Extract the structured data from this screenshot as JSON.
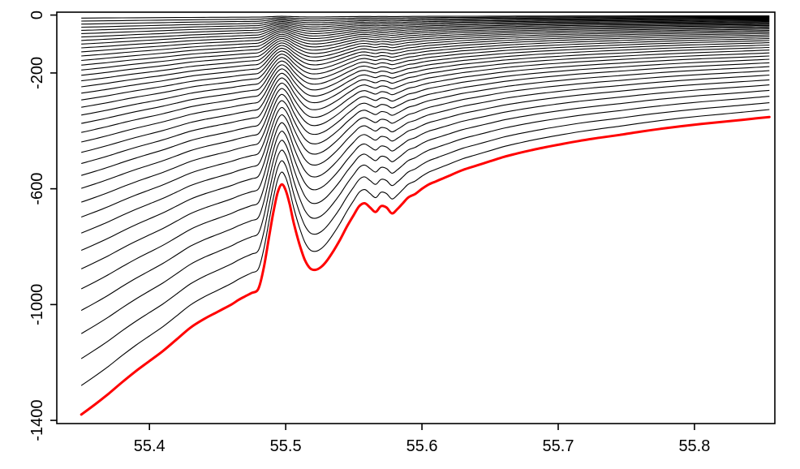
{
  "figure": {
    "background": "#FFFFFF",
    "axis_color": "#000000"
  },
  "chart_data": {
    "type": "line",
    "title": "",
    "subtitle": "",
    "xlabel": "",
    "ylabel": "",
    "grid": false,
    "legend": "none",
    "xlim": [
      55.332,
      55.859
    ],
    "ylim": [
      -1411,
      10
    ],
    "x_ticks": [
      {
        "value": 55.4,
        "label": "55.4"
      },
      {
        "value": 55.5,
        "label": "55.5"
      },
      {
        "value": 55.6,
        "label": "55.6"
      },
      {
        "value": 55.7,
        "label": "55.7"
      },
      {
        "value": 55.8,
        "label": "55.8"
      }
    ],
    "y_ticks": [
      {
        "value": 0,
        "label": "0"
      },
      {
        "value": -200,
        "label": "-200"
      },
      {
        "value": -600,
        "label": "-600"
      },
      {
        "value": -1000,
        "label": "-1000"
      },
      {
        "value": -1400,
        "label": "-1400"
      }
    ],
    "series_style": {
      "level_color": "#000000",
      "level_width": 1.1,
      "bottom_color": "#FF0000",
      "bottom_width": 3
    },
    "levels": {
      "count": 40,
      "stretching": "sinh",
      "theta": 3.0,
      "rule": "depth_k(x) = sinh(theta*k/N)/sinh(theta) * bathymetry(x), k = 1..N; level N is the red bottom line"
    },
    "bathymetry": {
      "name": "bottom-depth-profile",
      "x": [
        55.35,
        55.36,
        55.37,
        55.38,
        55.39,
        55.4,
        55.41,
        55.42,
        55.43,
        55.44,
        55.45,
        55.46,
        55.465,
        55.47,
        55.475,
        55.48,
        55.484,
        55.488,
        55.491,
        55.494,
        55.497,
        55.5,
        55.503,
        55.506,
        55.51,
        55.514,
        55.518,
        55.522,
        55.526,
        55.53,
        55.535,
        55.54,
        55.545,
        55.55,
        55.554,
        55.558,
        55.562,
        55.566,
        55.57,
        55.574,
        55.578,
        55.582,
        55.586,
        55.59,
        55.595,
        55.6,
        55.605,
        55.61,
        55.615,
        55.62,
        55.63,
        55.64,
        55.65,
        55.66,
        55.67,
        55.68,
        55.69,
        55.7,
        55.715,
        55.73,
        55.745,
        55.76,
        55.775,
        55.79,
        55.805,
        55.82,
        55.835,
        55.845,
        55.855
      ],
      "depth": [
        -1380,
        -1345,
        -1308,
        -1268,
        -1230,
        -1195,
        -1160,
        -1120,
        -1080,
        -1050,
        -1025,
        -1000,
        -985,
        -972,
        -960,
        -945,
        -870,
        -760,
        -680,
        -615,
        -585,
        -605,
        -655,
        -720,
        -790,
        -845,
        -875,
        -880,
        -870,
        -850,
        -815,
        -775,
        -730,
        -690,
        -660,
        -650,
        -665,
        -680,
        -660,
        -665,
        -685,
        -670,
        -650,
        -630,
        -618,
        -600,
        -585,
        -575,
        -565,
        -555,
        -535,
        -520,
        -505,
        -490,
        -478,
        -467,
        -457,
        -448,
        -435,
        -424,
        -414,
        -403,
        -393,
        -384,
        -376,
        -369,
        -362,
        -357,
        -352
      ]
    }
  }
}
